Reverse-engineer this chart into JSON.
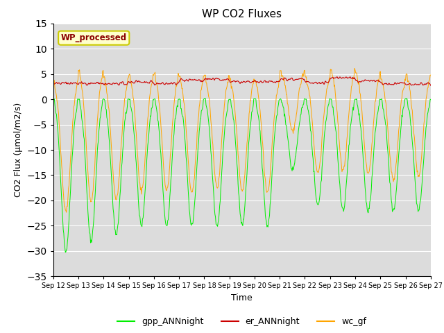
{
  "title": "WP CO2 Fluxes",
  "xlabel": "Time",
  "ylabel": "CO2 Flux (μmol/m2/s)",
  "ylim": [
    -35,
    15
  ],
  "yticks": [
    -35,
    -30,
    -25,
    -20,
    -15,
    -10,
    -5,
    0,
    5,
    10,
    15
  ],
  "annotation_text": "WP_processed",
  "annotation_color": "#8B0000",
  "annotation_bg": "#FFFFCC",
  "annotation_border": "#CCCC00",
  "line_colors": {
    "gpp": "#00EE00",
    "er": "#CC0000",
    "wc": "#FFA500"
  },
  "legend_labels": [
    "gpp_ANNnight",
    "er_ANNnight",
    "wc_gf"
  ],
  "n_days": 15,
  "start_day": 12,
  "background_color": "#DCDCDC",
  "grid_color": "#FFFFFF",
  "fig_bg": "#FFFFFF"
}
